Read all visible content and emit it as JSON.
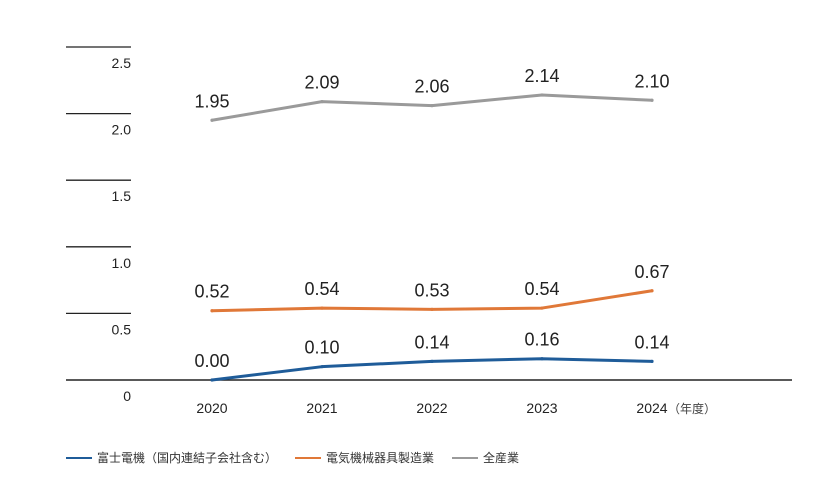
{
  "chart_data": {
    "type": "line",
    "x": [
      "2020",
      "2021",
      "2022",
      "2023",
      "2024"
    ],
    "x_unit": "（年度）",
    "y_ticks": [
      "0",
      "0.5",
      "1.0",
      "1.5",
      "2.0",
      "2.5"
    ],
    "ylim": [
      0,
      2.5
    ],
    "grid": false,
    "legend_position": "bottom-left",
    "series": [
      {
        "name": "富士電機（国内連結子会社含む）",
        "color": "#1f5c99",
        "values": [
          0.0,
          0.1,
          0.14,
          0.16,
          0.14
        ],
        "labels": [
          "0.00",
          "0.10",
          "0.14",
          "0.16",
          "0.14"
        ]
      },
      {
        "name": "電気機械器具製造業",
        "color": "#e07838",
        "values": [
          0.52,
          0.54,
          0.53,
          0.54,
          0.67
        ],
        "labels": [
          "0.52",
          "0.54",
          "0.53",
          "0.54",
          "0.67"
        ]
      },
      {
        "name": "全産業",
        "color": "#9a9a9a",
        "values": [
          1.95,
          2.09,
          2.06,
          2.14,
          2.1
        ],
        "labels": [
          "1.95",
          "2.09",
          "2.06",
          "2.14",
          "2.10"
        ]
      }
    ]
  }
}
